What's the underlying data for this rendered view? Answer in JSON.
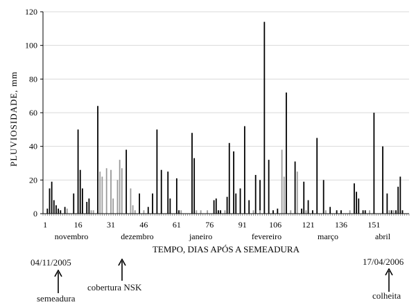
{
  "chart_data": {
    "type": "bar",
    "title": "",
    "xlabel": "TEMPO, DIAS  APÓS A SEMEADURA",
    "ylabel": "PLUVIOSIDADE, mm",
    "xlim": [
      0,
      167
    ],
    "ylim": [
      0,
      120
    ],
    "yticks": [
      0,
      20,
      40,
      60,
      80,
      100,
      120
    ],
    "xticks": [
      1,
      16,
      31,
      46,
      61,
      76,
      91,
      106,
      121,
      136,
      151
    ],
    "months": [
      {
        "label": "novembro",
        "day": 13
      },
      {
        "label": "dezembro",
        "day": 43
      },
      {
        "label": "janeiro",
        "day": 72
      },
      {
        "label": "fevereiro",
        "day": 102
      },
      {
        "label": "março",
        "day": 130
      },
      {
        "label": "abril",
        "day": 155
      }
    ],
    "series": [
      {
        "name": "black",
        "color": "#000000",
        "x": [
          2,
          3,
          4,
          5,
          6,
          7,
          8,
          10,
          14,
          16,
          17,
          18,
          20,
          21,
          25,
          38,
          44,
          48,
          50,
          52,
          54,
          57,
          58,
          61,
          62,
          68,
          69,
          78,
          79,
          80,
          81,
          84,
          85,
          87,
          88,
          90,
          92,
          94,
          97,
          99,
          101,
          103,
          105,
          107,
          111,
          115,
          118,
          119,
          121,
          123,
          125,
          128,
          131,
          134,
          136,
          142,
          143,
          144,
          146,
          147,
          151,
          155,
          157,
          159,
          161,
          162,
          163,
          164
        ],
        "values": [
          3,
          15,
          19,
          8,
          5,
          3,
          2,
          4,
          12,
          50,
          26,
          15,
          7,
          9,
          64,
          38,
          12,
          4,
          12,
          50,
          26,
          25,
          9,
          21,
          2,
          48,
          33,
          8,
          9,
          2,
          2,
          10,
          42,
          37,
          12,
          15,
          52,
          8,
          23,
          20,
          114,
          32,
          2,
          3,
          72,
          31,
          3,
          19,
          8,
          2,
          45,
          20,
          4,
          2,
          2,
          18,
          13,
          9,
          2,
          2,
          60,
          40,
          12,
          2,
          2,
          16,
          22,
          2
        ]
      },
      {
        "name": "grey",
        "color": "#9a9a9a",
        "x": [
          11,
          22,
          23,
          26,
          27,
          29,
          31,
          32,
          34,
          35,
          36,
          40,
          41,
          42,
          46,
          63,
          70,
          72,
          75,
          83,
          96,
          99,
          109,
          110,
          113,
          116,
          120,
          129,
          140,
          149,
          158,
          160
        ],
        "values": [
          3,
          2,
          2,
          25,
          22,
          27,
          26,
          9,
          20,
          32,
          27,
          15,
          5,
          2,
          2,
          2,
          2,
          2,
          2,
          2,
          2,
          2,
          38,
          22,
          2,
          25,
          2,
          2,
          2,
          2,
          2,
          2
        ]
      }
    ]
  },
  "annotations": {
    "sow_date": "04/11/2005",
    "sow_label": "semeadura",
    "cover_label": "cobertura NSK",
    "harvest_date": "17/04/2006",
    "harvest_label": "colheita"
  }
}
